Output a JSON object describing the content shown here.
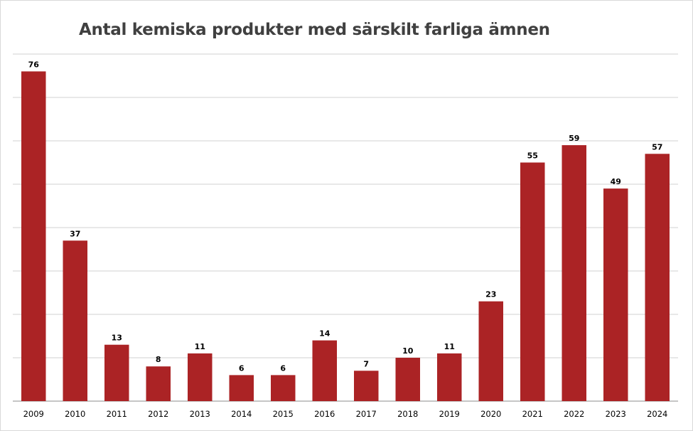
{
  "chart_data": {
    "type": "bar",
    "title": "Antal kemiska produkter med särskilt farliga ämnen",
    "xlabel": "",
    "ylabel": "",
    "categories": [
      "2009",
      "2010",
      "2011",
      "2012",
      "2013",
      "2014",
      "2015",
      "2016",
      "2017",
      "2018",
      "2019",
      "2020",
      "2021",
      "2022",
      "2023",
      "2024"
    ],
    "values": [
      76,
      37,
      13,
      8,
      11,
      6,
      6,
      14,
      7,
      10,
      11,
      23,
      55,
      59,
      49,
      57
    ],
    "ylim": [
      0,
      80
    ],
    "grid_step": 10,
    "grid": true,
    "legend": "none",
    "data_labels": true,
    "colors": {
      "bar": "#ab2325",
      "gridline": "#d0d0d0",
      "title": "#404040"
    }
  }
}
